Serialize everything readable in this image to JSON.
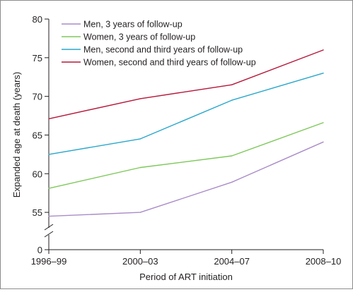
{
  "chart_data": {
    "type": "line",
    "title": "",
    "xlabel": "Period of ART initiation",
    "ylabel": "Expanded age at death (years)",
    "categories": [
      "1996–99",
      "2000–03",
      "2004–07",
      "2008–10"
    ],
    "y_ticks": [
      "0",
      "55",
      "60",
      "65",
      "70",
      "75",
      "80"
    ],
    "ylim": [
      53,
      80
    ],
    "y_axis_break": true,
    "grid": false,
    "legend_position": "top-left",
    "series": [
      {
        "name": "Men, 3 years of follow-up",
        "color": "#a98cc8",
        "values": [
          54.5,
          55.0,
          58.9,
          64.1
        ]
      },
      {
        "name": "Women, 3 years of follow-up",
        "color": "#7dc85a",
        "values": [
          58.1,
          60.8,
          62.3,
          66.6
        ]
      },
      {
        "name": "Men, second and third years of follow-up",
        "color": "#2aa7cc",
        "values": [
          62.5,
          64.5,
          69.5,
          73.0
        ]
      },
      {
        "name": "Women, second and third years of follow-up",
        "color": "#b5183a",
        "values": [
          67.1,
          69.7,
          71.5,
          76.0
        ]
      }
    ]
  }
}
